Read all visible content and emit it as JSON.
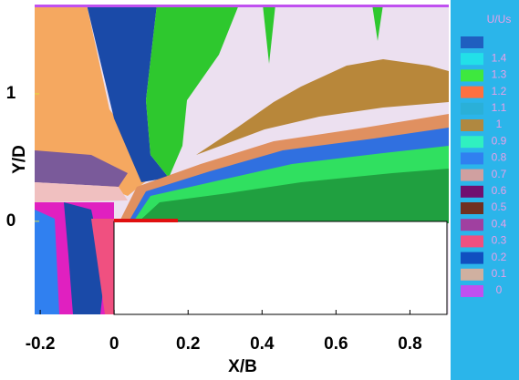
{
  "chart_data": {
    "type": "contour",
    "x_label": "X/B",
    "y_label": "Y/D",
    "xlim": [
      -0.215,
      0.905
    ],
    "ylim": [
      -0.73,
      1.7
    ],
    "xticks": [
      -0.2,
      0,
      0.2,
      0.4,
      0.6,
      0.8
    ],
    "yticks": [
      0,
      1
    ],
    "legend": {
      "title": "U/Us",
      "levels": [
        1.4,
        1.3,
        1.2,
        1.1,
        1,
        0.9,
        0.8,
        0.7,
        0.6,
        0.5,
        0.4,
        0.3,
        0.2,
        0.1,
        0
      ],
      "colors": [
        "#1f5fc0",
        "#22e0e8",
        "#3ee83e",
        "#ff7040",
        "#2ab0d8",
        "#b08840",
        "#30f0c0",
        "#3080f0",
        "#d0a0a0",
        "#701070",
        "#703020",
        "#a040a0",
        "#f05080",
        "#1050c0",
        "#d0b0a0",
        "#c050f0"
      ]
    }
  }
}
